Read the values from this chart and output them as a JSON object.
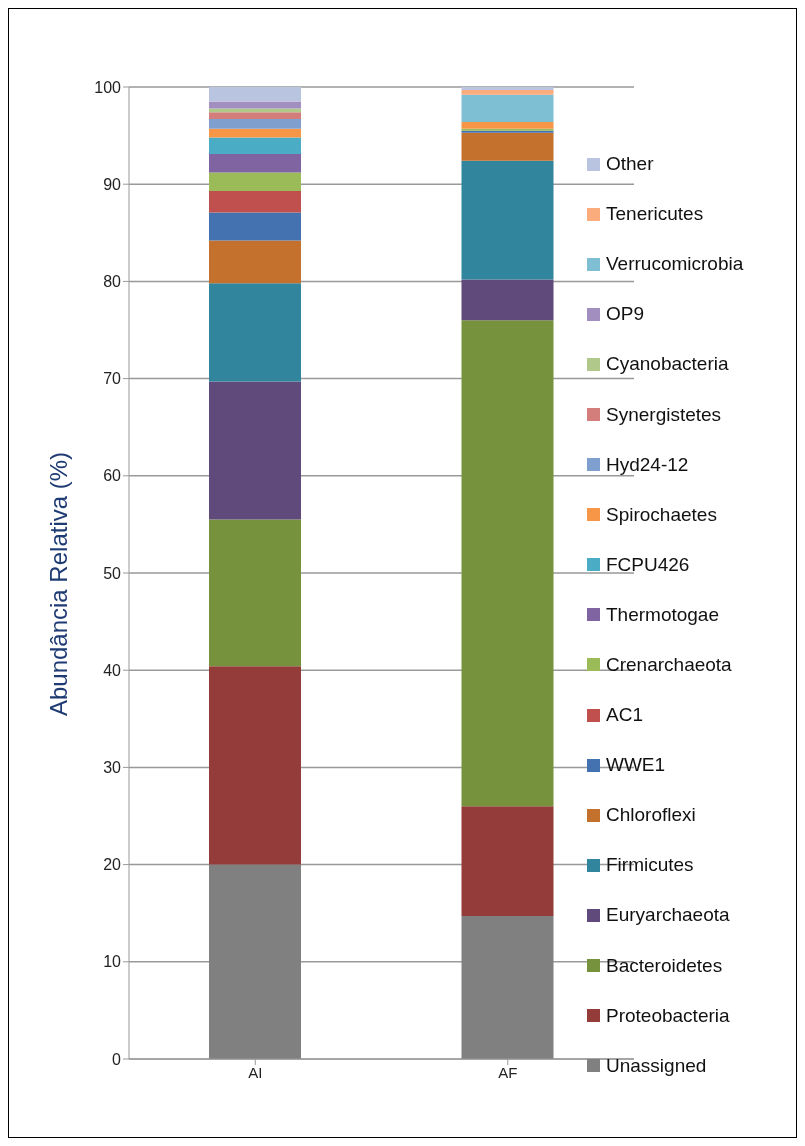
{
  "chart_data": {
    "type": "bar",
    "stacked": true,
    "ylabel": "Abundância Relativa (%)",
    "categories": [
      "AI",
      "AF"
    ],
    "ylim": [
      0,
      100
    ],
    "yticks": [
      0,
      10,
      20,
      30,
      40,
      50,
      60,
      70,
      80,
      90,
      100
    ],
    "grid": "y",
    "legend": "right",
    "series": [
      {
        "name": "Unassigned",
        "color": "#808080",
        "values": [
          20,
          14.7
        ]
      },
      {
        "name": "Proteobacteria",
        "color": "#943c3a",
        "values": [
          20.4,
          11.3
        ]
      },
      {
        "name": "Bacteroidetes",
        "color": "#76923c",
        "values": [
          15.1,
          50
        ]
      },
      {
        "name": "Euryarchaeota",
        "color": "#604a7b",
        "values": [
          14.2,
          4.2
        ]
      },
      {
        "name": "Firmicutes",
        "color": "#31859c",
        "values": [
          10.1,
          12.2
        ]
      },
      {
        "name": "Chloroflexi",
        "color": "#c5712e",
        "values": [
          4.4,
          2.9
        ]
      },
      {
        "name": "WWE1",
        "color": "#4472b0",
        "values": [
          2.9,
          0.2
        ]
      },
      {
        "name": "AC1",
        "color": "#c0504d",
        "values": [
          2.2,
          0
        ]
      },
      {
        "name": "Crenarchaeota",
        "color": "#9bbb59",
        "values": [
          1.9,
          0.2
        ]
      },
      {
        "name": "Thermotogae",
        "color": "#8064a2",
        "values": [
          1.9,
          0
        ]
      },
      {
        "name": "FCPU426",
        "color": "#4bacc6",
        "values": [
          1.7,
          0
        ]
      },
      {
        "name": "Spirochaetes",
        "color": "#f79646",
        "values": [
          0.9,
          0.7
        ]
      },
      {
        "name": "Hyd24-12",
        "color": "#7f9fcf",
        "values": [
          1.0,
          0
        ]
      },
      {
        "name": "Synergistetes",
        "color": "#d47e7c",
        "values": [
          0.7,
          0
        ]
      },
      {
        "name": "Cyanobacteria",
        "color": "#b0c98a",
        "values": [
          0.4,
          0
        ]
      },
      {
        "name": "OP9",
        "color": "#a28fbf",
        "values": [
          0.7,
          0
        ]
      },
      {
        "name": "Verrucomicrobia",
        "color": "#7fbfd3",
        "values": [
          0,
          2.8
        ]
      },
      {
        "name": "Tenericutes",
        "color": "#fbac7c",
        "values": [
          0,
          0.5
        ]
      },
      {
        "name": "Other",
        "color": "#b9c5e0",
        "values": [
          1.5,
          0.3
        ]
      }
    ]
  }
}
